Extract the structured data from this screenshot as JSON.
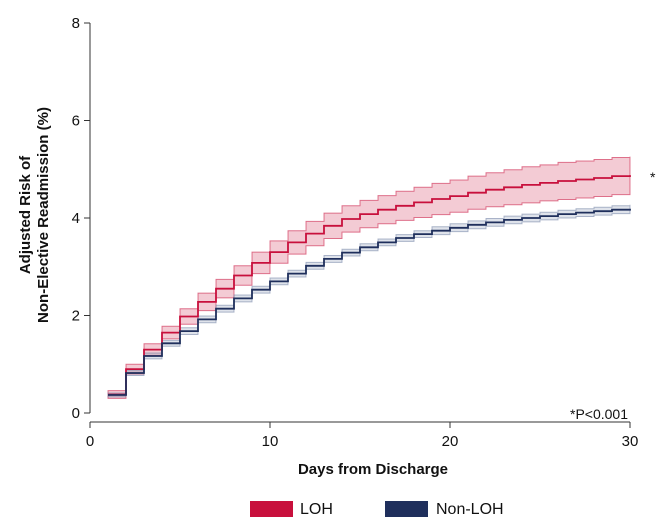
{
  "chart_data": {
    "type": "line",
    "subtype": "step",
    "title": "",
    "xlabel": "Days from Discharge",
    "ylabel_lines": [
      "Adjusted Risk of",
      "Non-Elective Readmission (%)"
    ],
    "xlim": [
      0,
      30
    ],
    "ylim": [
      0,
      8
    ],
    "xticks": [
      0,
      10,
      20,
      30
    ],
    "yticks": [
      0,
      2,
      4,
      6,
      8
    ],
    "grid": false,
    "legend_position": "bottom",
    "series": [
      {
        "name": "LOH",
        "color": "#c8103c",
        "band_color": "#c8103c",
        "x": [
          1,
          2,
          3,
          4,
          5,
          6,
          7,
          8,
          9,
          10,
          11,
          12,
          13,
          14,
          15,
          16,
          17,
          18,
          19,
          20,
          21,
          22,
          23,
          24,
          25,
          26,
          27,
          28,
          29,
          30
        ],
        "y": [
          0.38,
          0.9,
          1.3,
          1.65,
          1.98,
          2.28,
          2.55,
          2.82,
          3.08,
          3.3,
          3.5,
          3.68,
          3.84,
          3.98,
          4.08,
          4.17,
          4.25,
          4.32,
          4.39,
          4.45,
          4.52,
          4.58,
          4.63,
          4.68,
          4.72,
          4.76,
          4.79,
          4.82,
          4.86,
          4.88
        ],
        "lower": [
          0.3,
          0.8,
          1.18,
          1.52,
          1.82,
          2.1,
          2.36,
          2.62,
          2.86,
          3.07,
          3.26,
          3.43,
          3.58,
          3.71,
          3.8,
          3.88,
          3.95,
          4.01,
          4.07,
          4.12,
          4.18,
          4.23,
          4.27,
          4.31,
          4.35,
          4.38,
          4.41,
          4.44,
          4.48,
          4.5
        ],
        "upper": [
          0.46,
          1.0,
          1.42,
          1.78,
          2.14,
          2.46,
          2.74,
          3.02,
          3.3,
          3.53,
          3.74,
          3.93,
          4.1,
          4.25,
          4.36,
          4.46,
          4.55,
          4.63,
          4.71,
          4.78,
          4.86,
          4.93,
          4.99,
          5.05,
          5.09,
          5.14,
          5.17,
          5.2,
          5.24,
          5.26
        ]
      },
      {
        "name": "Non-LOH",
        "color": "#1f2f5c",
        "band_color": "#6f7fa3",
        "x": [
          1,
          2,
          3,
          4,
          5,
          6,
          7,
          8,
          9,
          10,
          11,
          12,
          13,
          14,
          15,
          16,
          17,
          18,
          19,
          20,
          21,
          22,
          23,
          24,
          25,
          26,
          27,
          28,
          29,
          30
        ],
        "y": [
          0.37,
          0.82,
          1.17,
          1.43,
          1.68,
          1.92,
          2.14,
          2.35,
          2.53,
          2.7,
          2.86,
          3.02,
          3.16,
          3.29,
          3.4,
          3.5,
          3.59,
          3.67,
          3.74,
          3.8,
          3.86,
          3.91,
          3.96,
          4.0,
          4.04,
          4.08,
          4.11,
          4.14,
          4.17,
          4.19
        ],
        "lower": [
          0.33,
          0.77,
          1.11,
          1.37,
          1.61,
          1.85,
          2.07,
          2.28,
          2.46,
          2.63,
          2.79,
          2.95,
          3.09,
          3.22,
          3.33,
          3.43,
          3.52,
          3.6,
          3.66,
          3.72,
          3.78,
          3.83,
          3.88,
          3.92,
          3.96,
          4.0,
          4.03,
          4.06,
          4.09,
          4.11
        ],
        "upper": [
          0.41,
          0.87,
          1.23,
          1.49,
          1.75,
          1.99,
          2.21,
          2.42,
          2.6,
          2.77,
          2.93,
          3.09,
          3.23,
          3.36,
          3.47,
          3.57,
          3.66,
          3.74,
          3.82,
          3.88,
          3.94,
          3.99,
          4.04,
          4.08,
          4.12,
          4.16,
          4.19,
          4.22,
          4.25,
          4.27
        ]
      }
    ],
    "annotations": [
      {
        "text": "*",
        "anchor": "end of LOH line"
      },
      {
        "text": "*P<0.001",
        "anchor": "bottom-right"
      }
    ]
  }
}
